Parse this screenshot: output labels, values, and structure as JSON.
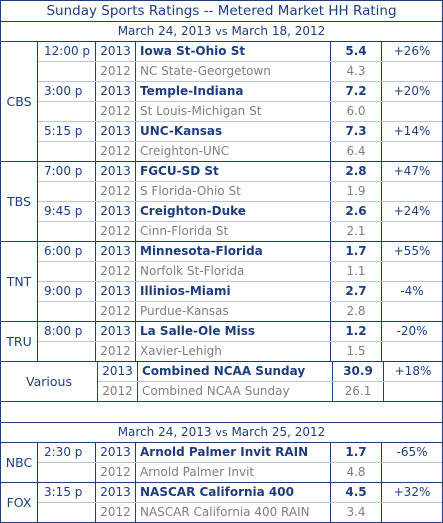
{
  "title": "Sunday Sports Ratings -- Metered Market HH Rating",
  "subtitle1": {
    "a": "March 24, 2013",
    "vs": "vs",
    "b": "March 18, 2012"
  },
  "subtitle2": {
    "a": "March 24, 2013",
    "vs": "vs",
    "b": "March 25, 2012"
  },
  "groups": [
    {
      "network": "CBS",
      "rows": [
        {
          "time": "12:00 p",
          "year": "2013",
          "game": "Iowa St-Ohio St",
          "rating": "5.4",
          "change": "+26%",
          "current": true
        },
        {
          "time": "",
          "year": "2012",
          "game": "NC State-Georgetown",
          "rating": "4.3",
          "change": "",
          "current": false
        },
        {
          "time": "3:00 p",
          "year": "2013",
          "game": "Temple-Indiana",
          "rating": "7.2",
          "change": "+20%",
          "current": true
        },
        {
          "time": "",
          "year": "2012",
          "game": "St Louis-Michigan St",
          "rating": "6.0",
          "change": "",
          "current": false
        },
        {
          "time": "5:15 p",
          "year": "2013",
          "game": "UNC-Kansas",
          "rating": "7.3",
          "change": "+14%",
          "current": true
        },
        {
          "time": "",
          "year": "2012",
          "game": "Creighton-UNC",
          "rating": "6.4",
          "change": "",
          "current": false
        }
      ]
    },
    {
      "network": "TBS",
      "rows": [
        {
          "time": "7:00 p",
          "year": "2013",
          "game": "FGCU-SD St",
          "rating": "2.8",
          "change": "+47%",
          "current": true
        },
        {
          "time": "",
          "year": "2012",
          "game": "S Florida-Ohio St",
          "rating": "1.9",
          "change": "",
          "current": false
        },
        {
          "time": "9:45 p",
          "year": "2013",
          "game": "Creighton-Duke",
          "rating": "2.6",
          "change": "+24%",
          "current": true
        },
        {
          "time": "",
          "year": "2012",
          "game": "Cinn-Florida St",
          "rating": "2.1",
          "change": "",
          "current": false
        }
      ]
    },
    {
      "network": "TNT",
      "rows": [
        {
          "time": "6:00 p",
          "year": "2013",
          "game": "Minnesota-Florida",
          "rating": "1.7",
          "change": "+55%",
          "current": true
        },
        {
          "time": "",
          "year": "2012",
          "game": "Norfolk St-Florida",
          "rating": "1.1",
          "change": "",
          "current": false
        },
        {
          "time": "9:00 p",
          "year": "2013",
          "game": "Illinios-Miami",
          "rating": "2.7",
          "change": "-4%",
          "current": true
        },
        {
          "time": "",
          "year": "2012",
          "game": "Purdue-Kansas",
          "rating": "2.8",
          "change": "",
          "current": false
        }
      ]
    },
    {
      "network": "TRU",
      "rows": [
        {
          "time": "8:00 p",
          "year": "2013",
          "game": "La Salle-Ole Miss",
          "rating": "1.2",
          "change": "-20%",
          "current": true
        },
        {
          "time": "",
          "year": "2012",
          "game": "Xavier-Lehigh",
          "rating": "1.5",
          "change": "",
          "current": false
        }
      ]
    },
    {
      "network": "Various",
      "wide": true,
      "rows": [
        {
          "time": "",
          "year": "2013",
          "game": "Combined NCAA Sunday",
          "rating": "30.9",
          "change": "+18%",
          "current": true
        },
        {
          "time": "",
          "year": "2012",
          "game": "Combined NCAA Sunday",
          "rating": "26.1",
          "change": "",
          "current": false
        }
      ]
    }
  ],
  "groups2": [
    {
      "network": "NBC",
      "rows": [
        {
          "time": "2:30 p",
          "year": "2013",
          "game": "Arnold Palmer Invit RAIN",
          "rating": "1.7",
          "change": "-65%",
          "current": true
        },
        {
          "time": "",
          "year": "2012",
          "game": "Arnold Palmer Invit",
          "rating": "4.8",
          "change": "",
          "current": false
        }
      ]
    },
    {
      "network": "FOX",
      "rows": [
        {
          "time": "3:15 p",
          "year": "2013",
          "game": "NASCAR California 400",
          "rating": "4.5",
          "change": "+32%",
          "current": true
        },
        {
          "time": "",
          "year": "2012",
          "game": "NASCAR California 400 RAIN",
          "rating": "3.4",
          "change": "",
          "current": false
        }
      ]
    }
  ]
}
